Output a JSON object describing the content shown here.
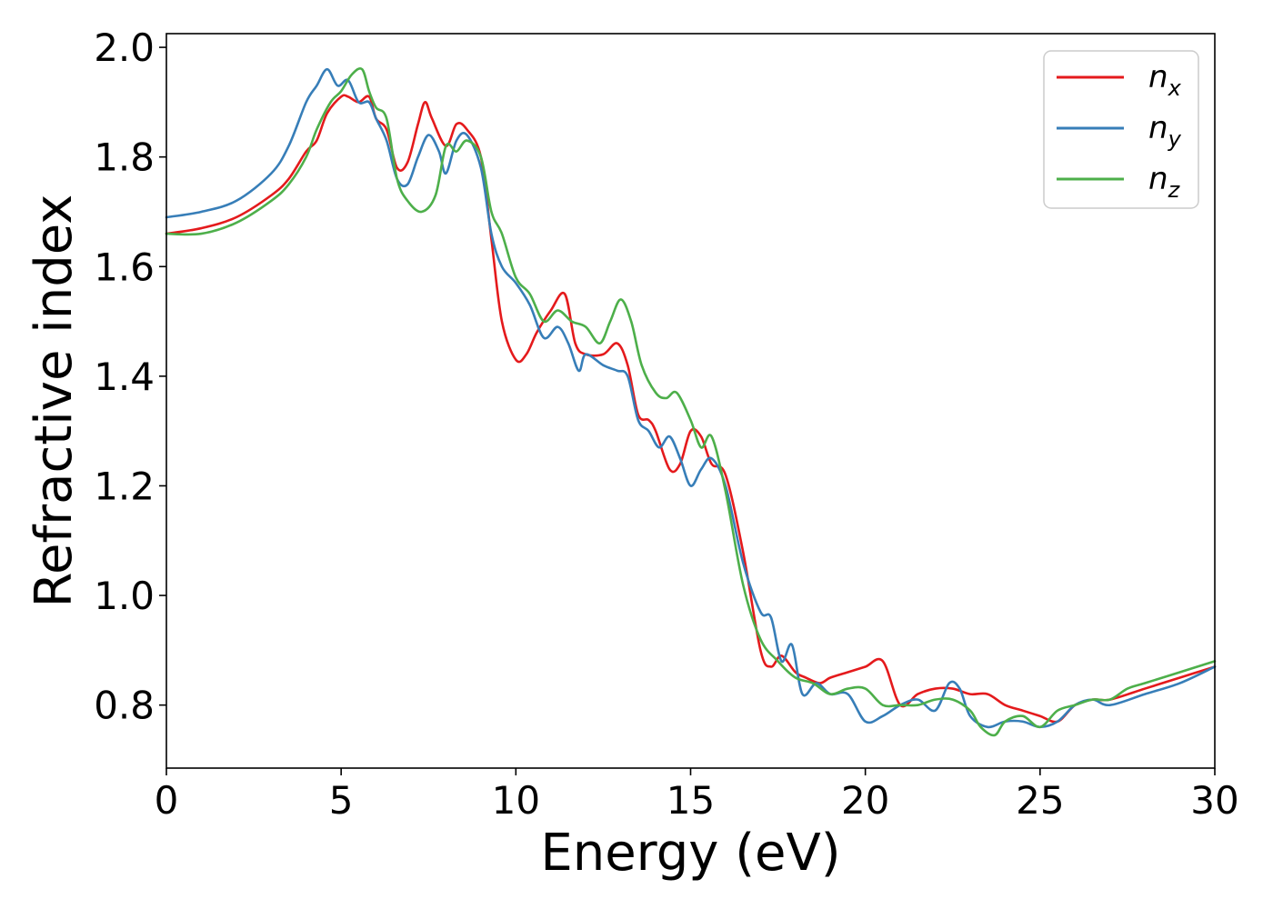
{
  "chart_data": {
    "type": "line",
    "title": "",
    "xlabel": "Energy (eV)",
    "ylabel": "Refractive index",
    "xlim": [
      0,
      30
    ],
    "ylim": [
      0.685,
      2.025
    ],
    "xticks": [
      0,
      5,
      10,
      15,
      20,
      25,
      30
    ],
    "yticks": [
      0.8,
      1.0,
      1.2,
      1.4,
      1.6,
      1.8,
      2.0
    ],
    "xtick_labels": [
      "0",
      "5",
      "10",
      "15",
      "20",
      "25",
      "30"
    ],
    "ytick_labels": [
      "0.8",
      "1.0",
      "1.2",
      "1.4",
      "1.6",
      "1.8",
      "2.0"
    ],
    "grid": false,
    "legend_position": "top-right",
    "series": [
      {
        "name": "n",
        "subscript": "x",
        "color": "#e41a1c",
        "x": [
          0,
          1,
          2,
          3,
          3.5,
          4,
          4.3,
          4.6,
          5.0,
          5.2,
          5.5,
          5.8,
          6.0,
          6.3,
          6.6,
          6.9,
          7.2,
          7.4,
          7.6,
          8.0,
          8.3,
          8.6,
          9.0,
          9.3,
          9.6,
          10.0,
          10.3,
          10.6,
          11.0,
          11.4,
          11.7,
          12.0,
          12.5,
          12.9,
          13.2,
          13.5,
          13.8,
          14.0,
          14.4,
          14.7,
          15.0,
          15.3,
          15.6,
          16.0,
          16.5,
          17.0,
          17.3,
          17.6,
          18.0,
          18.3,
          18.7,
          19.0,
          19.5,
          20.0,
          20.5,
          21.0,
          21.5,
          22.0,
          22.5,
          23.0,
          23.5,
          24.0,
          24.5,
          25.0,
          25.5,
          26.0,
          26.5,
          27.0,
          28.0,
          29.0,
          30.0
        ],
        "y": [
          1.66,
          1.67,
          1.69,
          1.73,
          1.76,
          1.81,
          1.83,
          1.88,
          1.91,
          1.91,
          1.9,
          1.91,
          1.87,
          1.85,
          1.78,
          1.79,
          1.86,
          1.9,
          1.87,
          1.82,
          1.86,
          1.85,
          1.8,
          1.65,
          1.5,
          1.43,
          1.44,
          1.48,
          1.52,
          1.55,
          1.46,
          1.44,
          1.44,
          1.46,
          1.42,
          1.33,
          1.32,
          1.3,
          1.23,
          1.24,
          1.3,
          1.29,
          1.24,
          1.22,
          1.08,
          0.9,
          0.87,
          0.89,
          0.86,
          0.85,
          0.84,
          0.85,
          0.86,
          0.87,
          0.88,
          0.8,
          0.82,
          0.83,
          0.83,
          0.82,
          0.82,
          0.8,
          0.79,
          0.78,
          0.77,
          0.8,
          0.81,
          0.81,
          0.83,
          0.85,
          0.87
        ]
      },
      {
        "name": "n",
        "subscript": "y",
        "color": "#377eb8",
        "x": [
          0,
          1,
          2,
          3,
          3.5,
          4,
          4.3,
          4.6,
          4.9,
          5.2,
          5.5,
          5.8,
          6.0,
          6.3,
          6.6,
          6.9,
          7.2,
          7.5,
          7.8,
          8.0,
          8.3,
          8.6,
          9.0,
          9.3,
          9.6,
          10.0,
          10.4,
          10.8,
          11.2,
          11.5,
          11.8,
          12.0,
          12.5,
          12.9,
          13.2,
          13.5,
          13.8,
          14.1,
          14.4,
          14.7,
          15.0,
          15.3,
          15.6,
          16.0,
          16.5,
          17.0,
          17.3,
          17.6,
          17.9,
          18.2,
          18.6,
          19.0,
          19.5,
          20.0,
          20.5,
          21.0,
          21.5,
          22.0,
          22.4,
          22.7,
          23.0,
          23.5,
          24.0,
          24.5,
          25.0,
          25.5,
          26.0,
          26.5,
          27.0,
          28.0,
          29.0,
          30.0
        ],
        "y": [
          1.69,
          1.7,
          1.72,
          1.77,
          1.82,
          1.9,
          1.93,
          1.96,
          1.93,
          1.94,
          1.9,
          1.9,
          1.87,
          1.83,
          1.76,
          1.75,
          1.8,
          1.84,
          1.81,
          1.77,
          1.83,
          1.84,
          1.78,
          1.66,
          1.6,
          1.57,
          1.53,
          1.47,
          1.49,
          1.46,
          1.41,
          1.44,
          1.42,
          1.41,
          1.4,
          1.32,
          1.3,
          1.27,
          1.29,
          1.25,
          1.2,
          1.23,
          1.25,
          1.2,
          1.06,
          0.97,
          0.96,
          0.88,
          0.91,
          0.82,
          0.84,
          0.82,
          0.82,
          0.77,
          0.78,
          0.8,
          0.81,
          0.79,
          0.84,
          0.83,
          0.78,
          0.76,
          0.77,
          0.77,
          0.76,
          0.77,
          0.8,
          0.81,
          0.8,
          0.82,
          0.84,
          0.87
        ]
      },
      {
        "name": "n",
        "subscript": "z",
        "color": "#4daf4a",
        "x": [
          0,
          1,
          2,
          3,
          3.5,
          4,
          4.3,
          4.7,
          5.0,
          5.3,
          5.6,
          5.8,
          6.0,
          6.3,
          6.6,
          6.9,
          7.3,
          7.7,
          8.0,
          8.3,
          8.6,
          9.0,
          9.3,
          9.6,
          10.0,
          10.4,
          10.8,
          11.2,
          11.6,
          12.0,
          12.4,
          12.7,
          13.0,
          13.3,
          13.6,
          14.0,
          14.3,
          14.6,
          15.0,
          15.3,
          15.6,
          16.0,
          16.5,
          17.0,
          17.5,
          18.0,
          18.5,
          19.0,
          19.5,
          20.0,
          20.5,
          21.0,
          21.5,
          22.0,
          22.5,
          23.0,
          23.3,
          23.7,
          24.0,
          24.5,
          25.0,
          25.5,
          26.0,
          26.5,
          27.0,
          27.5,
          28.0,
          29.0,
          30.0
        ],
        "y": [
          1.66,
          1.66,
          1.68,
          1.72,
          1.75,
          1.8,
          1.85,
          1.9,
          1.92,
          1.95,
          1.96,
          1.92,
          1.89,
          1.87,
          1.76,
          1.72,
          1.7,
          1.73,
          1.82,
          1.81,
          1.83,
          1.8,
          1.7,
          1.66,
          1.58,
          1.55,
          1.5,
          1.52,
          1.5,
          1.49,
          1.46,
          1.5,
          1.54,
          1.5,
          1.42,
          1.37,
          1.36,
          1.37,
          1.32,
          1.27,
          1.29,
          1.19,
          1.02,
          0.92,
          0.88,
          0.85,
          0.84,
          0.82,
          0.83,
          0.83,
          0.8,
          0.8,
          0.8,
          0.81,
          0.81,
          0.79,
          0.76,
          0.745,
          0.77,
          0.78,
          0.76,
          0.79,
          0.8,
          0.81,
          0.81,
          0.83,
          0.84,
          0.86,
          0.88
        ]
      }
    ]
  }
}
